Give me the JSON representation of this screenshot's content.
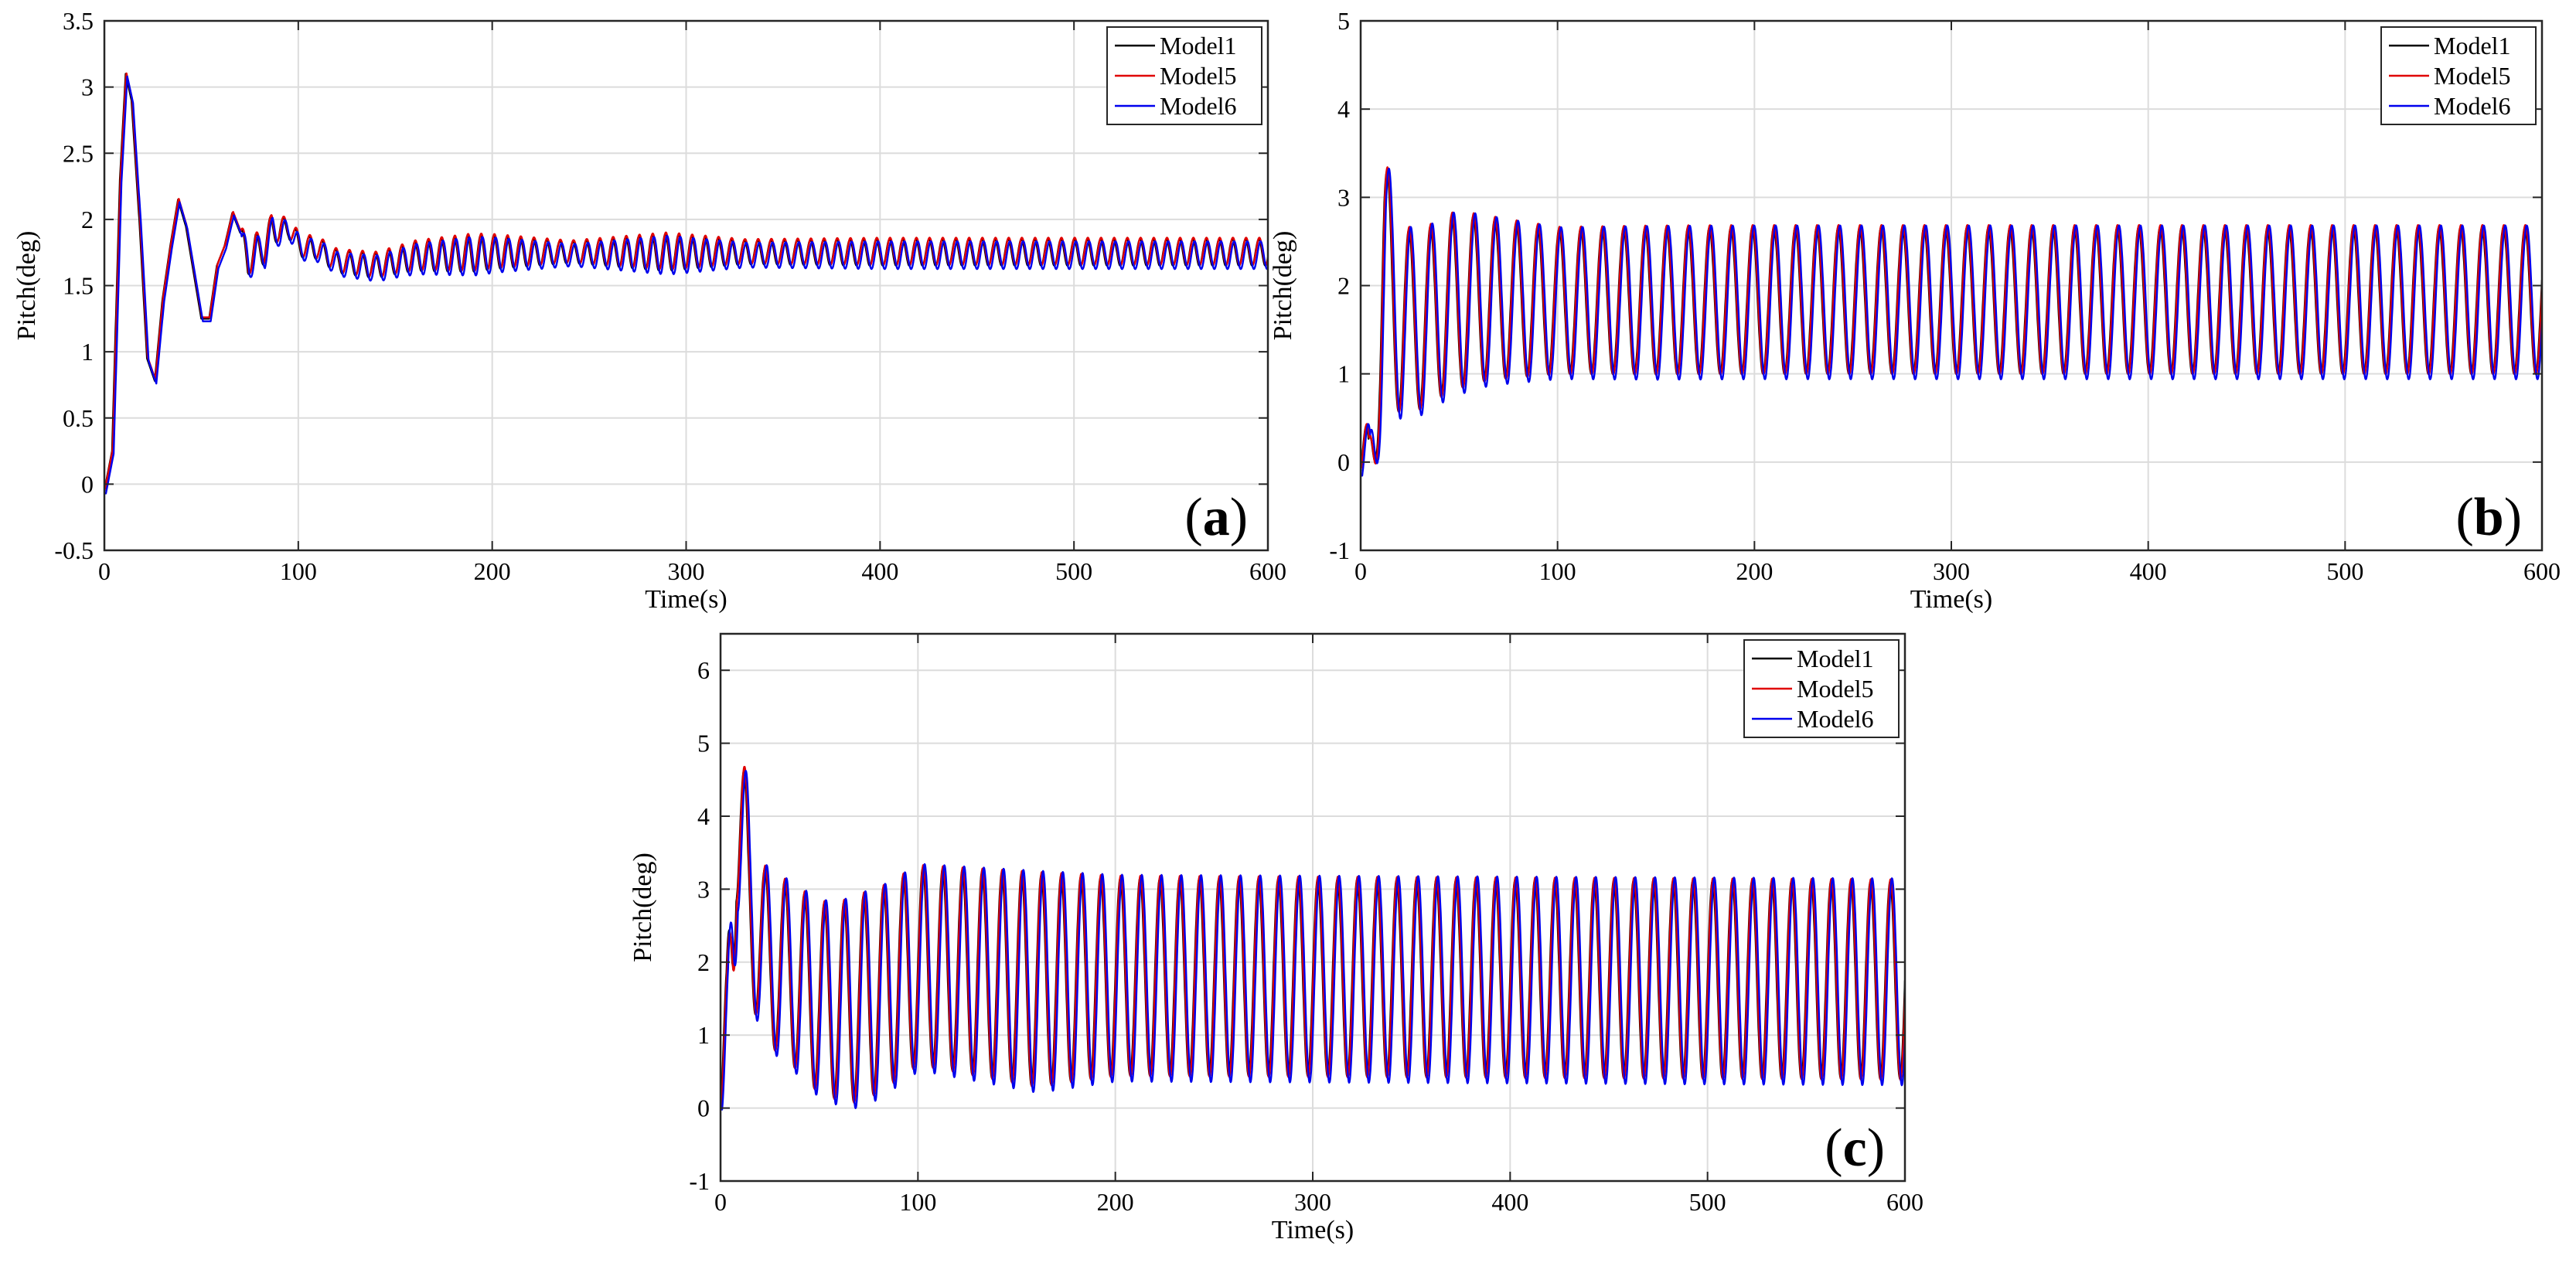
{
  "chart_data": [
    {
      "type": "line",
      "panel_label": "a",
      "xlabel": "Time(s)",
      "ylabel": "Pitch(deg)",
      "xlim": [
        0,
        600
      ],
      "ylim": [
        -0.5,
        3.5
      ],
      "xticks": [
        0,
        100,
        200,
        300,
        400,
        500,
        600
      ],
      "yticks": [
        -0.5,
        0,
        0.5,
        1,
        1.5,
        2,
        2.5,
        3,
        3.5
      ],
      "ytick_labels": [
        "-0.5",
        "0",
        "0.5",
        "1",
        "1.5",
        "2",
        "2.5",
        "3",
        "3.5"
      ],
      "legend_position": "top-right",
      "series": [
        {
          "name": "Model1",
          "color": "#000000"
        },
        {
          "name": "Model5",
          "color": "#e00000"
        },
        {
          "name": "Model6",
          "color": "#0000ee"
        }
      ],
      "signal": {
        "points": [
          [
            0,
            -0.05
          ],
          [
            4,
            0.25
          ],
          [
            8,
            2.3
          ],
          [
            11,
            3.1
          ],
          [
            14,
            2.9
          ],
          [
            18,
            2.0
          ],
          [
            22,
            0.95
          ],
          [
            26,
            0.78
          ],
          [
            30,
            1.4
          ],
          [
            34,
            1.8
          ],
          [
            38,
            2.15
          ],
          [
            42,
            1.95
          ],
          [
            46,
            1.6
          ],
          [
            50,
            1.25
          ],
          [
            54,
            1.25
          ],
          [
            58,
            1.65
          ],
          [
            62,
            1.8
          ],
          [
            66,
            2.05
          ],
          [
            70,
            1.9
          ],
          [
            74,
            1.65
          ],
          [
            78,
            1.8
          ],
          [
            82,
            1.75
          ],
          [
            86,
            1.95
          ],
          [
            90,
            1.9
          ],
          [
            95,
            1.95
          ],
          [
            100,
            1.8
          ],
          [
            110,
            1.78
          ],
          [
            120,
            1.68
          ],
          [
            140,
            1.65
          ],
          [
            160,
            1.72
          ],
          [
            200,
            1.75
          ],
          [
            300,
            1.75
          ],
          [
            600,
            1.75
          ]
        ],
        "osc_start": 70,
        "period": 6.8,
        "amp_points": [
          [
            0,
            0
          ],
          [
            70,
            0.1
          ],
          [
            110,
            0.08
          ],
          [
            150,
            0.1
          ],
          [
            190,
            0.14
          ],
          [
            240,
            0.08
          ],
          [
            290,
            0.14
          ],
          [
            330,
            0.09
          ],
          [
            400,
            0.1
          ],
          [
            600,
            0.1
          ]
        ]
      }
    },
    {
      "type": "line",
      "panel_label": "b",
      "xlabel": "Time(s)",
      "ylabel": "Pitch(deg)",
      "xlim": [
        0,
        600
      ],
      "ylim": [
        -1,
        5
      ],
      "xticks": [
        0,
        100,
        200,
        300,
        400,
        500,
        600
      ],
      "yticks": [
        -1,
        0,
        1,
        2,
        3,
        4,
        5
      ],
      "ytick_labels": [
        "-1",
        "0",
        "1",
        "2",
        "3",
        "4",
        "5"
      ],
      "legend_position": "top-right",
      "series": [
        {
          "name": "Model1",
          "color": "#000000"
        },
        {
          "name": "Model5",
          "color": "#e00000"
        },
        {
          "name": "Model6",
          "color": "#0000ee"
        }
      ],
      "signal": {
        "points": [
          [
            0,
            -0.1
          ],
          [
            4,
            -0.3
          ],
          [
            8,
            1.2
          ],
          [
            12,
            2.2
          ],
          [
            20,
            1.6
          ],
          [
            30,
            1.6
          ],
          [
            45,
            1.8
          ],
          [
            60,
            1.85
          ],
          [
            100,
            1.82
          ],
          [
            200,
            1.83
          ],
          [
            600,
            1.83
          ]
        ],
        "osc_start": 0,
        "period": 10.9,
        "amp_points": [
          [
            0,
            0.4
          ],
          [
            10,
            1.3
          ],
          [
            18,
            1.1
          ],
          [
            28,
            1.0
          ],
          [
            45,
            1.0
          ],
          [
            70,
            0.9
          ],
          [
            100,
            0.82
          ],
          [
            150,
            0.83
          ],
          [
            600,
            0.83
          ]
        ]
      }
    },
    {
      "type": "line",
      "panel_label": "c",
      "xlabel": "Time(s)",
      "ylabel": "Pitch(deg)",
      "xlim": [
        0,
        600
      ],
      "ylim": [
        -1,
        6.5
      ],
      "xticks": [
        0,
        100,
        200,
        300,
        400,
        500,
        600
      ],
      "yticks": [
        -1,
        0,
        1,
        2,
        3,
        4,
        5,
        6
      ],
      "ytick_labels": [
        "-1",
        "0",
        "1",
        "2",
        "3",
        "4",
        "5",
        "6"
      ],
      "legend_position": "top-right",
      "series": [
        {
          "name": "Model1",
          "color": "#000000"
        },
        {
          "name": "Model5",
          "color": "#e00000"
        },
        {
          "name": "Model6",
          "color": "#0000ee"
        }
      ],
      "signal": {
        "points": [
          [
            0,
            0
          ],
          [
            3,
            1.0
          ],
          [
            8,
            4.4
          ],
          [
            14,
            2.8
          ],
          [
            22,
            2.1
          ],
          [
            35,
            1.85
          ],
          [
            50,
            1.5
          ],
          [
            65,
            1.45
          ],
          [
            80,
            1.6
          ],
          [
            100,
            1.95
          ],
          [
            130,
            1.85
          ],
          [
            160,
            1.75
          ],
          [
            200,
            1.8
          ],
          [
            600,
            1.75
          ]
        ],
        "osc_start": 0,
        "period": 10.0,
        "amp_points": [
          [
            0,
            0
          ],
          [
            6,
            1.8
          ],
          [
            14,
            1.2
          ],
          [
            30,
            1.2
          ],
          [
            50,
            1.3
          ],
          [
            70,
            1.4
          ],
          [
            100,
            1.35
          ],
          [
            130,
            1.4
          ],
          [
            160,
            1.45
          ],
          [
            200,
            1.35
          ],
          [
            600,
            1.35
          ]
        ]
      }
    }
  ]
}
